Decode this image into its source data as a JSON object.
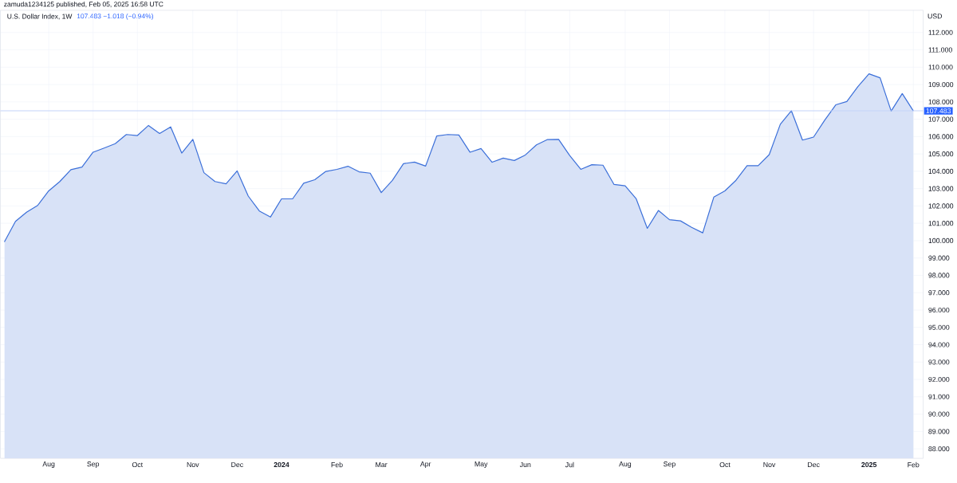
{
  "chart_data": {
    "type": "area",
    "title": "U.S. Dollar Index, 1W",
    "subtitle": "107.483 −1.018 (−0.94%)",
    "ylabel": "USD",
    "annotations": [
      "zamuda1234125 published, Feb 05, 2025 16:58 UTC"
    ],
    "x": [
      "2023-07-10",
      "2023-07-17",
      "2023-07-24",
      "2023-07-31",
      "2023-08-07",
      "2023-08-14",
      "2023-08-21",
      "2023-08-28",
      "2023-09-04",
      "2023-09-11",
      "2023-09-18",
      "2023-09-25",
      "2023-10-02",
      "2023-10-09",
      "2023-10-16",
      "2023-10-23",
      "2023-10-30",
      "2023-11-06",
      "2023-11-13",
      "2023-11-20",
      "2023-11-27",
      "2023-12-04",
      "2023-12-11",
      "2023-12-18",
      "2023-12-25",
      "2024-01-01",
      "2024-01-08",
      "2024-01-15",
      "2024-01-22",
      "2024-01-29",
      "2024-02-05",
      "2024-02-12",
      "2024-02-19",
      "2024-02-26",
      "2024-03-04",
      "2024-03-11",
      "2024-03-18",
      "2024-03-25",
      "2024-04-01",
      "2024-04-08",
      "2024-04-15",
      "2024-04-22",
      "2024-04-29",
      "2024-05-06",
      "2024-05-13",
      "2024-05-20",
      "2024-05-27",
      "2024-06-03",
      "2024-06-10",
      "2024-06-17",
      "2024-06-24",
      "2024-07-01",
      "2024-07-08",
      "2024-07-15",
      "2024-07-22",
      "2024-07-29",
      "2024-08-05",
      "2024-08-12",
      "2024-08-19",
      "2024-08-26",
      "2024-09-02",
      "2024-09-09",
      "2024-09-16",
      "2024-09-23",
      "2024-09-30",
      "2024-10-07",
      "2024-10-14",
      "2024-10-21",
      "2024-10-28",
      "2024-11-04",
      "2024-11-11",
      "2024-11-18",
      "2024-11-25",
      "2024-12-02",
      "2024-12-09",
      "2024-12-16",
      "2024-12-23",
      "2024-12-30",
      "2025-01-06",
      "2025-01-13",
      "2025-01-20",
      "2025-01-27",
      "2025-02-03"
    ],
    "series": [
      {
        "color": "#3b6fd9",
        "values": [
          99.93,
          101.11,
          101.64,
          102.03,
          102.87,
          103.41,
          104.09,
          104.24,
          105.1,
          105.34,
          105.59,
          106.12,
          106.06,
          106.64,
          106.18,
          106.56,
          105.05,
          105.84,
          103.92,
          103.41,
          103.28,
          104.02,
          102.57,
          101.71,
          101.36,
          102.41,
          102.41,
          103.31,
          103.51,
          103.99,
          104.11,
          104.29,
          103.97,
          103.89,
          102.77,
          103.47,
          104.44,
          104.53,
          104.3,
          106.03,
          106.12,
          106.09,
          105.1,
          105.31,
          104.52,
          104.76,
          104.62,
          104.94,
          105.52,
          105.83,
          105.84,
          104.91,
          104.11,
          104.38,
          104.35,
          103.24,
          103.16,
          102.41,
          100.71,
          101.74,
          101.21,
          101.14,
          100.77,
          100.45,
          102.51,
          102.87,
          103.48,
          104.32,
          104.32,
          104.96,
          106.71,
          107.49,
          105.8,
          105.97,
          106.94,
          107.83,
          108.02,
          108.88,
          109.62,
          109.39,
          107.47,
          108.48,
          107.483
        ]
      }
    ],
    "xlim": [
      "2023-07-07T12:00",
      "2025-02-09T06:00"
    ],
    "xticks": [
      {
        "value": "2023-08-07",
        "label": "Aug"
      },
      {
        "value": "2023-09-04",
        "label": "Sep"
      },
      {
        "value": "2023-10-02",
        "label": "Oct"
      },
      {
        "value": "2023-11-06",
        "label": "Nov"
      },
      {
        "value": "2023-12-04",
        "label": "Dec"
      },
      {
        "value": "2024-01-01",
        "label": "2024"
      },
      {
        "value": "2024-02-05",
        "label": "Feb"
      },
      {
        "value": "2024-03-04",
        "label": "Mar"
      },
      {
        "value": "2024-04-01",
        "label": "Apr"
      },
      {
        "value": "2024-05-06",
        "label": "May"
      },
      {
        "value": "2024-06-03",
        "label": "Jun"
      },
      {
        "value": "2024-07-01",
        "label": "Jul"
      },
      {
        "value": "2024-08-05",
        "label": "Aug"
      },
      {
        "value": "2024-09-02",
        "label": "Sep"
      },
      {
        "value": "2024-10-07",
        "label": "Oct"
      },
      {
        "value": "2024-11-04",
        "label": "Nov"
      },
      {
        "value": "2024-12-02",
        "label": "Dec"
      },
      {
        "value": "2025-01-06",
        "label": "2025"
      },
      {
        "value": "2025-02-03",
        "label": "Feb"
      }
    ],
    "ylim": [
      87.45,
      113.28
    ],
    "yticks": [
      {
        "value": 88,
        "label": "88.000"
      },
      {
        "value": 89,
        "label": "89.000"
      },
      {
        "value": 90,
        "label": "90.000"
      },
      {
        "value": 91,
        "label": "91.000"
      },
      {
        "value": 92,
        "label": "92.000"
      },
      {
        "value": 93,
        "label": "93.000"
      },
      {
        "value": 94,
        "label": "94.000"
      },
      {
        "value": 95,
        "label": "95.000"
      },
      {
        "value": 96,
        "label": "96.000"
      },
      {
        "value": 97,
        "label": "97.000"
      },
      {
        "value": 98,
        "label": "98.000"
      },
      {
        "value": 99,
        "label": "99.000"
      },
      {
        "value": 100,
        "label": "100.000"
      },
      {
        "value": 101,
        "label": "101.000"
      },
      {
        "value": 102,
        "label": "102.000"
      },
      {
        "value": 103,
        "label": "103.000"
      },
      {
        "value": 104,
        "label": "104.000"
      },
      {
        "value": 105,
        "label": "105.000"
      },
      {
        "value": 106,
        "label": "106.000"
      },
      {
        "value": 107,
        "label": "107.000"
      },
      {
        "value": 108,
        "label": "108.000"
      },
      {
        "value": 109,
        "label": "109.000"
      },
      {
        "value": 110,
        "label": "110.000"
      },
      {
        "value": 111,
        "label": "111.000"
      },
      {
        "value": 112,
        "label": "112.000"
      }
    ],
    "ref_lines": [
      {
        "axis": "y",
        "value": 107.483,
        "label": "107.483",
        "color": "#c4d3fa"
      }
    ],
    "grid": true
  }
}
